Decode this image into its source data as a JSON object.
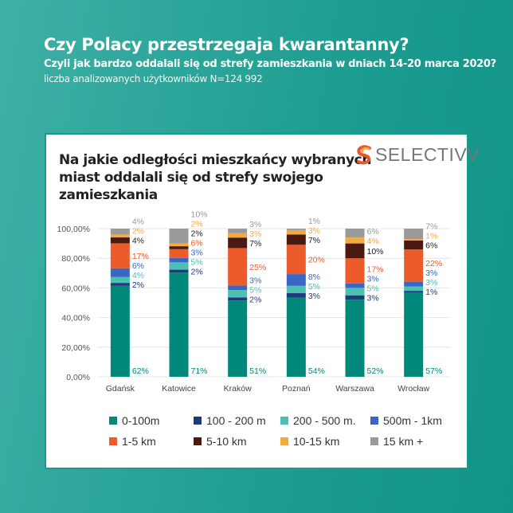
{
  "header": {
    "title": "Czy Polacy przestrzegaja kwarantanny?",
    "subtitle": "Czyli jak bardzo oddalali się od strefy zamieszkania w dniach 14-20 marca 2020?",
    "note": "liczba analizowanych użytkowników N=124 992"
  },
  "logo": {
    "text": "SELECTIVV"
  },
  "chart_data": {
    "type": "bar",
    "stacked": true,
    "title": "Na jakie odległości mieszkańcy wybranych miast oddalali się od strefy swojego zamieszkania",
    "categories": [
      "Gdańsk",
      "Katowice",
      "Kraków",
      "Poznań",
      "Warszawa",
      "Wrocław"
    ],
    "ylim": [
      0,
      100
    ],
    "yticks": [
      "0,00%",
      "20,00%",
      "40,00%",
      "60,00%",
      "80,00%",
      "100,00%"
    ],
    "grid": true,
    "legend_position": "bottom",
    "series": [
      {
        "name": "0-100m",
        "color": "#00897b",
        "values": [
          62,
          71,
          51,
          54,
          52,
          57
        ]
      },
      {
        "name": "100 - 200 m",
        "color": "#1f3a7a",
        "values": [
          2,
          2,
          2,
          3,
          3,
          1
        ]
      },
      {
        "name": "200 - 500 m.",
        "color": "#4dbfb5",
        "values": [
          4,
          5,
          5,
          5,
          5,
          3
        ]
      },
      {
        "name": "500m - 1km",
        "color": "#3a66c4",
        "values": [
          6,
          3,
          3,
          8,
          3,
          3
        ]
      },
      {
        "name": "1-5 km",
        "color": "#ec5b2a",
        "values": [
          17,
          6,
          25,
          20,
          17,
          22
        ]
      },
      {
        "name": "5-10 km",
        "color": "#4a1a10",
        "values": [
          4,
          2,
          7,
          7,
          10,
          6
        ]
      },
      {
        "name": "10-15 km",
        "color": "#f6a93b",
        "values": [
          2,
          2,
          3,
          3,
          4,
          1
        ]
      },
      {
        "name": "15 km +",
        "color": "#9a9a9a",
        "values": [
          4,
          10,
          3,
          1,
          6,
          7
        ]
      }
    ]
  }
}
